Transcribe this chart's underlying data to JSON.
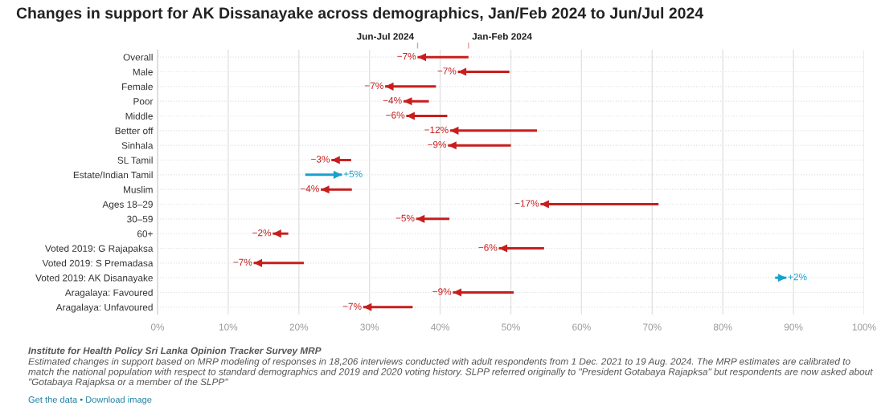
{
  "chart_data": {
    "type": "bar",
    "orientation": "horizontal",
    "title": "Changes in support for AK Dissanayake across demographics, Jan/Feb 2024 to Jun/Jul 2024",
    "categories": [
      "Overall",
      "Male",
      "Female",
      "Poor",
      "Middle",
      "Better off",
      "Sinhala",
      "SL Tamil",
      "Estate/Indian Tamil",
      "Muslim",
      "Ages 18–29",
      "30–59",
      "60+",
      "Voted 2019: G Rajapaksa",
      "Voted 2019: S Premadasa",
      "Voted 2019: AK Disanayake",
      "Aragalaya: Favoured",
      "Aragalaya: Unfavoured"
    ],
    "base": [
      44.0,
      49.8,
      39.4,
      38.4,
      41.0,
      53.7,
      50.0,
      27.4,
      20.9,
      27.5,
      70.9,
      41.3,
      18.5,
      54.7,
      20.7,
      87.4,
      50.4,
      36.1
    ],
    "values": [
      -7.2,
      -7.3,
      -7.2,
      -3.6,
      -5.8,
      -12.3,
      -8.9,
      -2.8,
      5.2,
      -4.4,
      -16.7,
      -4.7,
      -2.2,
      -6.4,
      -7.1,
      1.6,
      -8.6,
      -7.0
    ],
    "value_labels": [
      "−7%",
      "−7%",
      "−7%",
      "−4%",
      "−6%",
      "−12%",
      "−9%",
      "−3%",
      "+5%",
      "−4%",
      "−17%",
      "−5%",
      "−2%",
      "−6%",
      "−7%",
      "+2%",
      "−9%",
      "−7%"
    ],
    "colors": [
      "#c71e1d",
      "#c71e1d",
      "#c71e1d",
      "#c71e1d",
      "#c71e1d",
      "#c71e1d",
      "#c71e1d",
      "#c71e1d",
      "#18a1cd",
      "#c71e1d",
      "#c71e1d",
      "#c71e1d",
      "#c71e1d",
      "#c71e1d",
      "#c71e1d",
      "#18a1cd",
      "#c71e1d",
      "#c71e1d"
    ],
    "xlim": [
      0,
      100
    ],
    "xticks": [
      {
        "value": 0,
        "label": "0%"
      },
      {
        "value": 10,
        "label": "10%"
      },
      {
        "value": 20,
        "label": "20%"
      },
      {
        "value": 30,
        "label": "30%"
      },
      {
        "value": 40,
        "label": "40%"
      },
      {
        "value": 50,
        "label": "50%"
      },
      {
        "value": 60,
        "label": "60%"
      },
      {
        "value": 70,
        "label": "70%"
      },
      {
        "value": 80,
        "label": "80%"
      },
      {
        "value": 90,
        "label": "90%"
      },
      {
        "value": 100,
        "label": "100%"
      }
    ],
    "grid": true,
    "annotations": [
      "Jun-Jul 2024",
      "Jan-Feb 2024",
      "Institute for Health Policy Sri Lanka Opinion Tracker Survey MRP",
      "Estimated changes in support based on MRP modeling of responses in 18,206 interviews conducted with adult respondents from 1 Dec. 2021 to 19 Aug. 2024. The MRP estimates are calibrated to match the national population with respect to standard demographics and 2019 and 2020 voting history. SLPP referred originally to \"President Gotabaya Rajapksa\" but respondents are now asked about \"Gotabaya Rajapksa or a member of the SLPP\"",
      "Get the data • Download image"
    ]
  }
}
